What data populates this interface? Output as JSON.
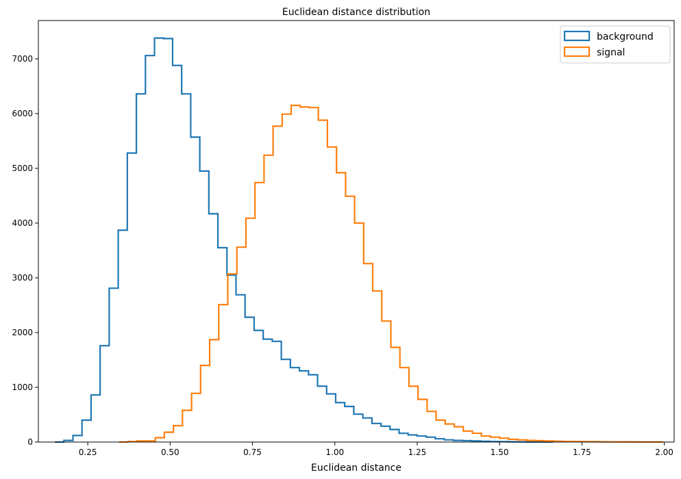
{
  "chart_data": {
    "type": "histogram",
    "title": "Euclidean distance distribution",
    "xlabel": "Euclidean distance",
    "ylabel": "",
    "xlim": [
      0.1,
      2.03
    ],
    "ylim": [
      0,
      7700
    ],
    "xticks": [
      0.25,
      0.5,
      0.75,
      1.0,
      1.25,
      1.5,
      1.75,
      2.0
    ],
    "xtick_labels": [
      "0.25",
      "0.50",
      "0.75",
      "1.00",
      "1.25",
      "1.50",
      "1.75",
      "2.00"
    ],
    "yticks": [
      0,
      1000,
      2000,
      3000,
      4000,
      5000,
      6000,
      7000
    ],
    "ytick_labels": [
      "0",
      "1000",
      "2000",
      "3000",
      "4000",
      "5000",
      "6000",
      "7000"
    ],
    "legend_position": "upper-right",
    "series": [
      {
        "name": "background",
        "color": "#1f77b4",
        "bin_start": 0.15,
        "bin_width": 0.0275,
        "counts": [
          0,
          30,
          120,
          400,
          860,
          1760,
          2810,
          3870,
          5280,
          6360,
          7060,
          7380,
          7370,
          6880,
          6360,
          5570,
          4950,
          4170,
          3550,
          3050,
          2690,
          2280,
          2040,
          1880,
          1840,
          1510,
          1360,
          1300,
          1230,
          1020,
          880,
          720,
          650,
          510,
          440,
          340,
          290,
          230,
          160,
          130,
          110,
          90,
          60,
          40,
          30,
          25,
          20,
          15,
          10,
          8,
          5,
          3,
          2,
          1,
          0
        ]
      },
      {
        "name": "signal",
        "color": "#ff7f0e",
        "bin_start": 0.345,
        "bin_width": 0.0275,
        "counts": [
          0,
          10,
          20,
          20,
          80,
          180,
          300,
          580,
          890,
          1400,
          1870,
          2510,
          3070,
          3560,
          4090,
          4740,
          5240,
          5770,
          5990,
          6150,
          6120,
          6110,
          5880,
          5390,
          4920,
          4490,
          4000,
          3260,
          2760,
          2210,
          1730,
          1360,
          1020,
          780,
          560,
          400,
          330,
          280,
          200,
          160,
          110,
          90,
          70,
          50,
          40,
          30,
          25,
          20,
          15,
          12,
          10,
          8,
          6,
          5,
          4,
          3,
          3,
          2,
          2,
          2
        ]
      }
    ]
  }
}
